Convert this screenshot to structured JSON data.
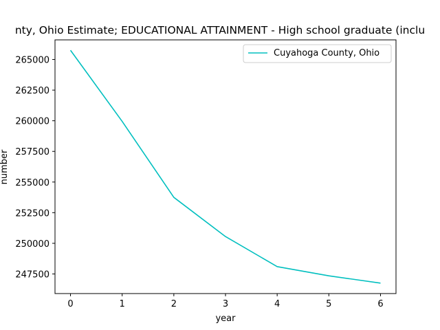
{
  "chart_data": {
    "type": "line",
    "title": "nty, Ohio Estimate; EDUCATIONAL ATTAINMENT - High school graduate (inclu",
    "xlabel": "year",
    "ylabel": "number",
    "x": [
      0,
      1,
      2,
      3,
      4,
      5,
      6
    ],
    "xlim": [
      -0.3,
      6.3
    ],
    "ylim": [
      245900,
      266600
    ],
    "xticks": [
      0,
      1,
      2,
      3,
      4,
      5,
      6
    ],
    "yticks": [
      247500,
      250000,
      252500,
      255000,
      257500,
      260000,
      262500,
      265000
    ],
    "grid": false,
    "legend_position": "upper right",
    "series": [
      {
        "name": "Cuyahoga County, Ohio",
        "color": "#00bfbf",
        "values": [
          265750,
          259950,
          253750,
          250550,
          248100,
          247350,
          246750
        ]
      }
    ]
  }
}
